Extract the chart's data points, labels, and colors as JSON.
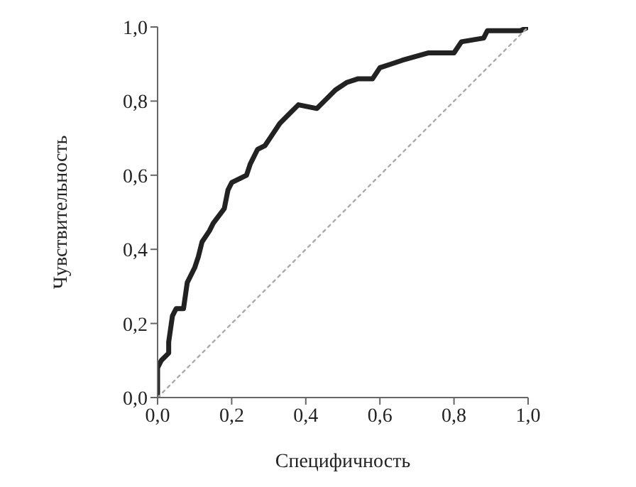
{
  "chart_data": {
    "type": "line",
    "xlabel": "Специфичность",
    "ylabel": "Чувствительность",
    "xlim": [
      0,
      1
    ],
    "ylim": [
      0,
      1
    ],
    "xticks": [
      {
        "value": 0,
        "label": "0,0"
      },
      {
        "value": 0.2,
        "label": "0,2"
      },
      {
        "value": 0.4,
        "label": "0,4"
      },
      {
        "value": 0.6,
        "label": "0,6"
      },
      {
        "value": 0.8,
        "label": "0,8"
      },
      {
        "value": 1,
        "label": "1,0"
      }
    ],
    "yticks": [
      {
        "value": 0,
        "label": "0,0"
      },
      {
        "value": 0.2,
        "label": "0,2"
      },
      {
        "value": 0.4,
        "label": "0,4"
      },
      {
        "value": 0.6,
        "label": "0,6"
      },
      {
        "value": 0.8,
        "label": "0,8"
      },
      {
        "value": 1,
        "label": "1,0"
      }
    ],
    "series": [
      {
        "color": "#222222",
        "line_style": "solid",
        "x": [
          0,
          0,
          0.01,
          0.03,
          0.03,
          0.04,
          0.05,
          0.07,
          0.08,
          0.1,
          0.11,
          0.12,
          0.14,
          0.15,
          0.18,
          0.19,
          0.2,
          0.24,
          0.25,
          0.27,
          0.29,
          0.31,
          0.33,
          0.36,
          0.38,
          0.43,
          0.45,
          0.48,
          0.51,
          0.54,
          0.58,
          0.6,
          0.63,
          0.66,
          0.73,
          0.8,
          0.82,
          0.88,
          0.89,
          0.98,
          1
        ],
        "values": [
          0,
          0.08,
          0.1,
          0.12,
          0.15,
          0.22,
          0.24,
          0.24,
          0.31,
          0.35,
          0.38,
          0.42,
          0.45,
          0.47,
          0.51,
          0.56,
          0.58,
          0.6,
          0.63,
          0.67,
          0.68,
          0.71,
          0.74,
          0.77,
          0.79,
          0.78,
          0.8,
          0.83,
          0.85,
          0.86,
          0.86,
          0.89,
          0.9,
          0.91,
          0.93,
          0.93,
          0.96,
          0.97,
          0.99,
          0.99,
          1
        ]
      },
      {
        "color": "#aaaaaa",
        "line_style": "dotted",
        "x": [
          0,
          1
        ],
        "values": [
          0,
          1
        ]
      }
    ]
  }
}
